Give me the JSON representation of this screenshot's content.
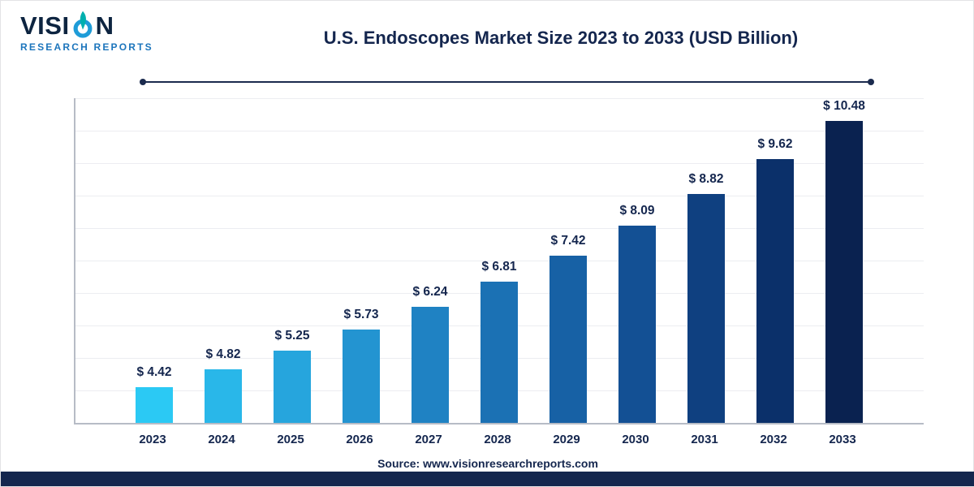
{
  "logo": {
    "word_part1": "VISI",
    "word_part2": "N",
    "subtitle": "RESEARCH REPORTS"
  },
  "header": {
    "title": "U.S. Endoscopes Market Size 2023 to 2033 (USD Billion)"
  },
  "footer": {
    "source": "Source: www.visionresearchreports.com"
  },
  "colors": {
    "accent_navy": "#14264e",
    "logo_blue": "#1c75bc",
    "axis_gray": "#b7bcc6",
    "gridline_gray": "#ecedf1"
  },
  "chart_data": {
    "type": "bar",
    "title": "U.S. Endoscopes Market Size 2023 to 2033 (USD Billion)",
    "unit": "USD Billion",
    "categories": [
      "2023",
      "2024",
      "2025",
      "2026",
      "2027",
      "2028",
      "2029",
      "2030",
      "2031",
      "2032",
      "2033"
    ],
    "values": [
      4.42,
      4.82,
      5.25,
      5.73,
      6.24,
      6.81,
      7.42,
      8.09,
      8.82,
      9.62,
      10.48
    ],
    "value_labels": [
      "$ 4.42",
      "$ 4.82",
      "$ 5.25",
      "$ 5.73",
      "$ 6.24",
      "$ 6.81",
      "$ 7.42",
      "$ 8.09",
      "$ 8.82",
      "$ 9.62",
      "$ 10.48"
    ],
    "bar_colors": [
      "#2bc9f4",
      "#29b7e9",
      "#26a5dd",
      "#2394d1",
      "#1f82c3",
      "#1b71b4",
      "#1761a5",
      "#135094",
      "#0f4080",
      "#0b306a",
      "#0a2250"
    ],
    "ylim": [
      3.6,
      11.0
    ],
    "grid": "horizontal",
    "legend": "none",
    "xlabel": "",
    "ylabel": ""
  }
}
